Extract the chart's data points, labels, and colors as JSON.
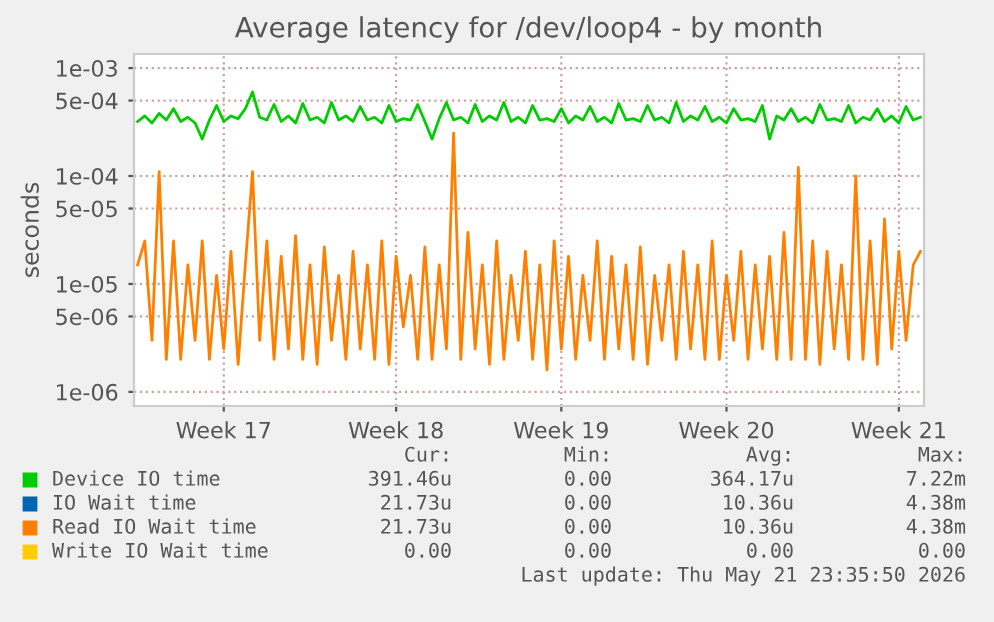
{
  "chart_data": {
    "type": "line",
    "title": "Average latency for /dev/loop4 - by month",
    "ylabel": "seconds",
    "log": "y",
    "grid": true,
    "legend": "bottom",
    "marker": "none",
    "line_style": "solid",
    "categories": [
      null,
      null,
      null,
      null,
      null,
      null,
      null,
      null,
      null,
      null,
      null,
      null,
      "Week 17",
      null,
      null,
      null,
      null,
      null,
      null,
      null,
      null,
      null,
      null,
      null,
      null,
      null,
      null,
      null,
      null,
      null,
      null,
      null,
      null,
      null,
      null,
      null,
      "Week 18",
      null,
      null,
      null,
      null,
      null,
      null,
      null,
      null,
      null,
      null,
      null,
      null,
      null,
      null,
      null,
      null,
      null,
      null,
      null,
      null,
      null,
      null,
      "Week 19",
      null,
      null,
      null,
      null,
      null,
      null,
      null,
      null,
      null,
      null,
      null,
      null,
      null,
      null,
      null,
      null,
      null,
      null,
      null,
      null,
      null,
      null,
      "Week 20",
      null,
      null,
      null,
      null,
      null,
      null,
      null,
      null,
      null,
      null,
      null,
      null,
      null,
      null,
      null,
      null,
      null,
      null,
      null,
      null,
      null,
      null,
      null,
      "Week 21",
      null,
      null,
      null
    ],
    "ylim": [
      7.4e-07,
      0.00135
    ],
    "yticks": [
      {
        "value": 1e-06,
        "label": "1e-06"
      },
      {
        "value": 5e-06,
        "label": "5e-06"
      },
      {
        "value": 1e-05,
        "label": "1e-05"
      },
      {
        "value": 5e-05,
        "label": "5e-05"
      },
      {
        "value": 0.0001,
        "label": "1e-04"
      },
      {
        "value": 0.0005,
        "label": "5e-04"
      },
      {
        "value": 0.001,
        "label": "1e-03"
      }
    ],
    "series": [
      {
        "name": "Device IO time",
        "color": "#00cc00",
        "values": [
          0.00032,
          0.00036,
          0.00031,
          0.00038,
          0.00033,
          0.00042,
          0.00032,
          0.00035,
          0.00031,
          0.00022,
          0.00033,
          0.00045,
          0.00032,
          0.00036,
          0.00034,
          0.00042,
          0.0006,
          0.00035,
          0.00033,
          0.00046,
          0.00032,
          0.00036,
          0.00031,
          0.00047,
          0.00033,
          0.00035,
          0.00031,
          0.00048,
          0.00033,
          0.00036,
          0.00032,
          0.00044,
          0.00033,
          0.00035,
          0.00031,
          0.00045,
          0.00032,
          0.00034,
          0.00033,
          0.00046,
          0.00032,
          0.00022,
          0.00034,
          0.00048,
          0.00033,
          0.00035,
          0.00031,
          0.00046,
          0.00032,
          0.00036,
          0.00033,
          0.00048,
          0.00032,
          0.00035,
          0.00031,
          0.00045,
          0.00033,
          0.00034,
          0.00032,
          0.00042,
          0.00031,
          0.00036,
          0.00033,
          0.00044,
          0.00032,
          0.00035,
          0.00031,
          0.00047,
          0.00033,
          0.00034,
          0.00032,
          0.00045,
          0.00033,
          0.00035,
          0.00031,
          0.00048,
          0.00032,
          0.00036,
          0.00033,
          0.00044,
          0.00032,
          0.00035,
          0.00031,
          0.00042,
          0.00033,
          0.00034,
          0.00032,
          0.00045,
          0.00022,
          0.00036,
          0.00033,
          0.00042,
          0.00032,
          0.00035,
          0.00031,
          0.00046,
          0.00033,
          0.00034,
          0.00032,
          0.00045,
          0.00031,
          0.00035,
          0.00033,
          0.00042,
          0.00032,
          0.00036,
          0.00031,
          0.00044,
          0.00033,
          0.00035
        ]
      },
      {
        "name": "IO Wait time",
        "color": "#0066b3",
        "values": [
          null,
          null,
          null,
          null,
          null,
          null,
          null,
          null,
          null,
          null,
          null,
          null,
          null,
          null,
          null,
          null,
          null,
          null,
          null,
          null,
          null,
          null,
          null,
          null,
          null,
          null,
          null,
          null,
          null,
          null,
          null,
          null,
          null,
          null,
          null,
          null,
          null,
          null,
          null,
          null,
          null,
          null,
          null,
          null,
          null,
          null,
          null,
          null,
          null,
          null,
          null,
          null,
          null,
          null,
          null,
          null,
          null,
          null,
          null,
          null,
          null,
          null,
          null,
          null,
          null,
          null,
          null,
          null,
          null,
          null,
          null,
          null,
          null,
          null,
          null,
          null,
          null,
          null,
          null,
          null,
          null,
          null,
          null,
          null,
          null,
          null,
          null,
          null,
          null,
          null,
          null,
          null,
          null,
          null,
          null,
          null,
          null,
          null,
          null,
          null,
          null,
          null,
          null,
          null,
          null,
          null,
          null,
          null,
          null,
          null
        ]
      },
      {
        "name": "Read IO Wait time",
        "color": "#ff8000",
        "values": [
          1.5e-05,
          2.5e-05,
          3e-06,
          0.00011,
          2e-06,
          2.5e-05,
          2e-06,
          1.5e-05,
          3e-06,
          2.5e-05,
          2e-06,
          1.2e-05,
          2.5e-06,
          2e-05,
          1.8e-06,
          1.5e-05,
          0.00011,
          3e-06,
          2.5e-05,
          2e-06,
          1.8e-05,
          2.5e-06,
          2.8e-05,
          2e-06,
          1.5e-05,
          1.8e-06,
          2.2e-05,
          3e-06,
          1.2e-05,
          2e-06,
          2e-05,
          2.5e-06,
          1.5e-05,
          2e-06,
          2.5e-05,
          1.8e-06,
          1.8e-05,
          4e-06,
          1.2e-05,
          2e-06,
          2.2e-05,
          2e-06,
          1.5e-05,
          2.5e-06,
          0.00025,
          2e-06,
          3e-05,
          2.5e-06,
          1.5e-05,
          1.8e-06,
          2.5e-05,
          2e-06,
          1.2e-05,
          3e-06,
          2e-05,
          2e-06,
          1.5e-05,
          1.6e-06,
          2.5e-05,
          2.5e-06,
          1.8e-05,
          2e-06,
          1.2e-05,
          3e-06,
          2.5e-05,
          2e-06,
          1.8e-05,
          2.5e-06,
          1.5e-05,
          2e-06,
          2.2e-05,
          1.8e-06,
          1.2e-05,
          3e-06,
          1.5e-05,
          2e-06,
          2e-05,
          2.5e-06,
          1.5e-05,
          2e-06,
          2.5e-05,
          2e-06,
          1.2e-05,
          3e-06,
          2e-05,
          2e-06,
          1.5e-05,
          2.5e-06,
          1.8e-05,
          2e-06,
          3e-05,
          2e-06,
          0.00012,
          2e-06,
          2.5e-05,
          1.8e-06,
          2e-05,
          2.5e-06,
          1.5e-05,
          2e-06,
          0.0001,
          2e-06,
          2.5e-05,
          1.8e-06,
          4e-05,
          2.5e-06,
          2e-05,
          3e-06,
          1.5e-05,
          2e-05
        ]
      },
      {
        "name": "Write IO Wait time",
        "color": "#ffcc00",
        "values": [
          null,
          null,
          null,
          null,
          null,
          null,
          null,
          null,
          null,
          null,
          null,
          null,
          null,
          null,
          null,
          null,
          null,
          null,
          null,
          null,
          null,
          null,
          null,
          null,
          null,
          null,
          null,
          null,
          null,
          null,
          null,
          null,
          null,
          null,
          null,
          null,
          null,
          null,
          null,
          null,
          null,
          null,
          null,
          null,
          null,
          null,
          null,
          null,
          null,
          null,
          null,
          null,
          null,
          null,
          null,
          null,
          null,
          null,
          null,
          null,
          null,
          null,
          null,
          null,
          null,
          null,
          null,
          null,
          null,
          null,
          null,
          null,
          null,
          null,
          null,
          null,
          null,
          null,
          null,
          null,
          null,
          null,
          null,
          null,
          null,
          null,
          null,
          null,
          null,
          null,
          null,
          null,
          null,
          null,
          null,
          null,
          null,
          null,
          null,
          null,
          null,
          null,
          null,
          null,
          null,
          null,
          null,
          null,
          null,
          null
        ]
      }
    ],
    "annotations": [
      "Cur:",
      "Min:",
      "Avg:",
      "Max:",
      "391.46u",
      "0.00",
      "364.17u",
      "7.22m",
      "21.73u",
      "0.00",
      "10.36u",
      "4.38m",
      "21.73u",
      "0.00",
      "10.36u",
      "4.38m",
      "0.00",
      "0.00",
      "0.00",
      "0.00",
      "Last update: Thu May 21 23:35:50 2026"
    ]
  }
}
